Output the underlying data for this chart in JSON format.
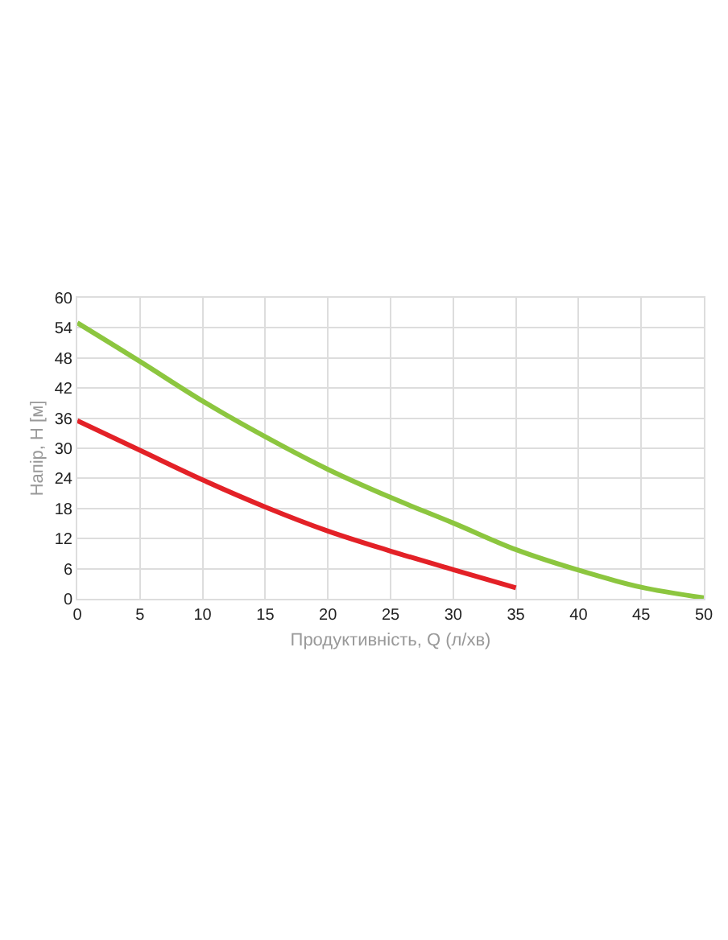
{
  "chart_data": {
    "type": "line",
    "xlabel": "Продуктивність, Q (л/хв)",
    "ylabel": "Напір, Н [м]",
    "xlim": [
      0,
      50
    ],
    "ylim": [
      0,
      60
    ],
    "xticks": [
      0,
      5,
      10,
      15,
      20,
      25,
      30,
      35,
      40,
      45,
      50
    ],
    "yticks": [
      0,
      6,
      12,
      18,
      24,
      30,
      36,
      42,
      48,
      54,
      60
    ],
    "grid": true,
    "marker": "none",
    "line_style": "solid",
    "series": [
      {
        "color": "#e32127",
        "x": [
          0,
          5,
          10,
          15,
          20,
          25,
          30,
          35
        ],
        "values": [
          35.5,
          29.6,
          23.7,
          18.3,
          13.5,
          9.5,
          5.8,
          2.2
        ]
      },
      {
        "color": "#8cc63f",
        "x": [
          0,
          5,
          10,
          15,
          20,
          25,
          30,
          35,
          40,
          45,
          50
        ],
        "values": [
          55,
          47.3,
          39.4,
          32.3,
          25.8,
          20.2,
          15.1,
          9.8,
          5.7,
          2.3,
          0.2
        ]
      }
    ]
  }
}
